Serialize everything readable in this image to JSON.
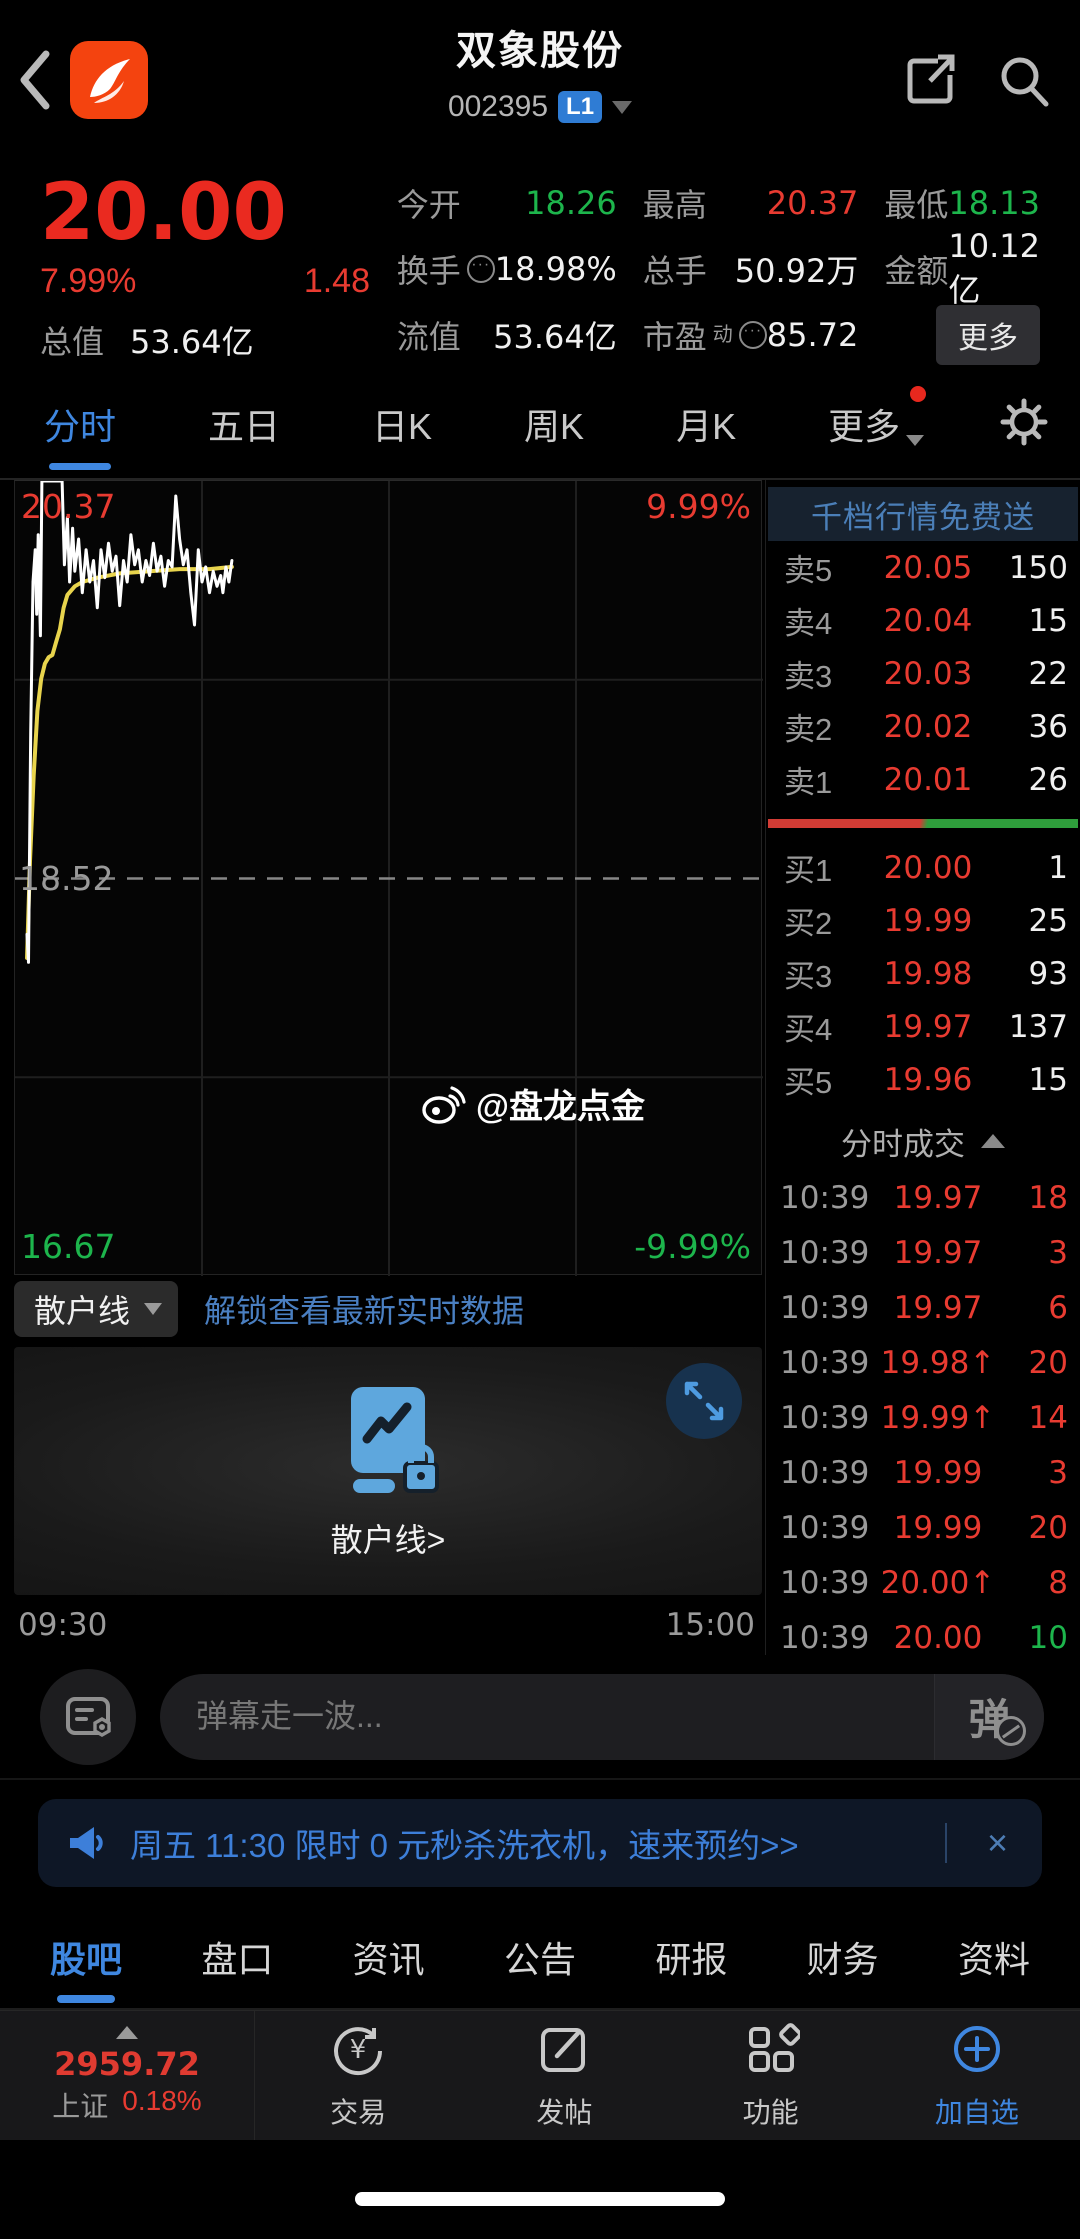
{
  "colors": {
    "accent_blue": "#3f87e0",
    "up_red": "#e83b31",
    "down_green": "#1db54c",
    "price_red": "#ea2a20",
    "link_blue": "#4a7fc1",
    "promo_blue": "#4b7fb8",
    "badge_blue": "#2f7cd4"
  },
  "header": {
    "title": "双象股份",
    "code": "002395",
    "level_badge": "L1"
  },
  "quote": {
    "price": "20.00",
    "change_pct": "7.99%",
    "change_abs": "1.48",
    "cap_label": "总值",
    "cap_value": "53.64亿",
    "stats": [
      {
        "label": "今开",
        "value": "18.26",
        "color": "green"
      },
      {
        "label": "最高",
        "value": "20.37",
        "color": "red"
      },
      {
        "label": "最低",
        "value": "18.13",
        "color": "green"
      },
      {
        "label": "换手",
        "icon": "ellipsis-circle-icon",
        "value": "18.98%",
        "color": "white"
      },
      {
        "label": "总手",
        "value": "50.92万",
        "color": "white"
      },
      {
        "label": "金额",
        "value": "10.12亿",
        "color": "white"
      },
      {
        "label": "流值",
        "value": "53.64亿",
        "color": "white"
      },
      {
        "label": "市盈",
        "sup": "动",
        "icon": "ellipsis-circle-icon",
        "value": "85.72",
        "color": "white"
      },
      {
        "label": "",
        "button": "更多"
      }
    ]
  },
  "period_tabs": [
    {
      "label": "分时",
      "active": true
    },
    {
      "label": "五日"
    },
    {
      "label": "日K"
    },
    {
      "label": "周K"
    },
    {
      "label": "月K"
    },
    {
      "label": "更多",
      "dot": true,
      "caret": true
    }
  ],
  "chart_data": {
    "type": "line",
    "title": "分时图 (intraday minute chart)",
    "x_start": "09:30",
    "x_end": "15:00",
    "ylim": [
      16.67,
      20.37
    ],
    "pct_lim": [
      "-9.99%",
      "9.99%"
    ],
    "prev_close": 18.52,
    "labels": {
      "top_left": "20.37",
      "top_right": "9.99%",
      "mid_left": "18.52",
      "bottom_left": "16.67",
      "bottom_right": "-9.99%"
    },
    "grid": {
      "v_fractions": [
        0.25,
        0.5,
        0.75
      ],
      "h_fractions": [
        0.25,
        0.75
      ]
    },
    "watermark": "@盘龙点金",
    "series": [
      {
        "name": "price",
        "color": "#ffffff",
        "points": [
          [
            0.016,
            18.26
          ],
          [
            0.018,
            18.13
          ],
          [
            0.021,
            19.2
          ],
          [
            0.024,
            19.9
          ],
          [
            0.027,
            20.05
          ],
          [
            0.029,
            19.75
          ],
          [
            0.031,
            20.12
          ],
          [
            0.034,
            19.65
          ],
          [
            0.036,
            20.37
          ],
          [
            0.063,
            20.37
          ],
          [
            0.066,
            19.98
          ],
          [
            0.07,
            20.2
          ],
          [
            0.073,
            19.9
          ],
          [
            0.077,
            20.15
          ],
          [
            0.08,
            19.95
          ],
          [
            0.085,
            20.1
          ],
          [
            0.09,
            19.85
          ],
          [
            0.095,
            20.05
          ],
          [
            0.1,
            19.9
          ],
          [
            0.105,
            20.0
          ],
          [
            0.11,
            19.78
          ],
          [
            0.115,
            20.05
          ],
          [
            0.12,
            19.92
          ],
          [
            0.125,
            20.08
          ],
          [
            0.13,
            19.95
          ],
          [
            0.135,
            20.02
          ],
          [
            0.14,
            19.79
          ],
          [
            0.145,
            20.0
          ],
          [
            0.15,
            19.9
          ],
          [
            0.155,
            20.12
          ],
          [
            0.16,
            19.98
          ],
          [
            0.165,
            20.05
          ],
          [
            0.17,
            19.9
          ],
          [
            0.175,
            20.0
          ],
          [
            0.18,
            19.93
          ],
          [
            0.185,
            20.08
          ],
          [
            0.19,
            19.95
          ],
          [
            0.195,
            20.02
          ],
          [
            0.2,
            19.88
          ],
          [
            0.205,
            20.0
          ],
          [
            0.21,
            19.97
          ],
          [
            0.215,
            20.3
          ],
          [
            0.22,
            20.1
          ],
          [
            0.225,
            19.98
          ],
          [
            0.23,
            20.05
          ],
          [
            0.235,
            19.85
          ],
          [
            0.24,
            19.7
          ],
          [
            0.245,
            20.05
          ],
          [
            0.25,
            19.9
          ],
          [
            0.255,
            19.97
          ],
          [
            0.26,
            19.85
          ],
          [
            0.265,
            19.95
          ],
          [
            0.27,
            19.88
          ],
          [
            0.275,
            19.93
          ],
          [
            0.278,
            19.85
          ],
          [
            0.282,
            19.97
          ],
          [
            0.286,
            19.9
          ],
          [
            0.29,
            20.0
          ]
        ]
      },
      {
        "name": "average",
        "color": "#e8d44d",
        "points": [
          [
            0.016,
            18.15
          ],
          [
            0.02,
            18.6
          ],
          [
            0.025,
            19.0
          ],
          [
            0.03,
            19.3
          ],
          [
            0.035,
            19.45
          ],
          [
            0.04,
            19.52
          ],
          [
            0.045,
            19.55
          ],
          [
            0.05,
            19.56
          ],
          [
            0.055,
            19.62
          ],
          [
            0.06,
            19.68
          ],
          [
            0.065,
            19.78
          ],
          [
            0.07,
            19.84
          ],
          [
            0.08,
            19.88
          ],
          [
            0.09,
            19.9
          ],
          [
            0.11,
            19.92
          ],
          [
            0.14,
            19.94
          ],
          [
            0.18,
            19.95
          ],
          [
            0.22,
            19.96
          ],
          [
            0.26,
            19.96
          ],
          [
            0.29,
            19.97
          ]
        ]
      }
    ]
  },
  "order_panel": {
    "promo": "千档行情免费送",
    "asks": [
      {
        "level": "卖5",
        "price": "20.05",
        "vol": "150"
      },
      {
        "level": "卖4",
        "price": "20.04",
        "vol": "15"
      },
      {
        "level": "卖3",
        "price": "20.03",
        "vol": "22"
      },
      {
        "level": "卖2",
        "price": "20.02",
        "vol": "36"
      },
      {
        "level": "卖1",
        "price": "20.01",
        "vol": "26"
      }
    ],
    "bids": [
      {
        "level": "买1",
        "price": "20.00",
        "vol": "1"
      },
      {
        "level": "买2",
        "price": "19.99",
        "vol": "25"
      },
      {
        "level": "买3",
        "price": "19.98",
        "vol": "93"
      },
      {
        "level": "买4",
        "price": "19.97",
        "vol": "137"
      },
      {
        "level": "买5",
        "price": "19.96",
        "vol": "15"
      }
    ],
    "trades_title": "分时成交",
    "trades": [
      {
        "time": "10:39",
        "price": "19.97",
        "vol": "18",
        "vol_color": "red"
      },
      {
        "time": "10:39",
        "price": "19.97",
        "vol": "3",
        "vol_color": "red"
      },
      {
        "time": "10:39",
        "price": "19.97",
        "vol": "6",
        "vol_color": "red"
      },
      {
        "time": "10:39",
        "price": "19.98↑",
        "vol": "20",
        "vol_color": "red"
      },
      {
        "time": "10:39",
        "price": "19.99↑",
        "vol": "14",
        "vol_color": "red"
      },
      {
        "time": "10:39",
        "price": "19.99",
        "vol": "3",
        "vol_color": "red"
      },
      {
        "time": "10:39",
        "price": "19.99",
        "vol": "20",
        "vol_color": "red"
      },
      {
        "time": "10:39",
        "price": "20.00↑",
        "vol": "8",
        "vol_color": "red"
      },
      {
        "time": "10:39",
        "price": "20.00",
        "vol": "10",
        "vol_color": "green"
      }
    ]
  },
  "retail_line": {
    "button": "散户线",
    "link": "解锁查看最新实时数据",
    "locked_label": "散户线>"
  },
  "comment": {
    "placeholder": "弹幕走一波...",
    "danmu_char": "弹"
  },
  "banner": {
    "text": "周五 11:30 限时 0 元秒杀洗衣机，速来预约>>",
    "close": "×"
  },
  "content_tabs": [
    {
      "label": "股吧",
      "active": true
    },
    {
      "label": "盘口"
    },
    {
      "label": "资讯"
    },
    {
      "label": "公告"
    },
    {
      "label": "研报"
    },
    {
      "label": "财务"
    },
    {
      "label": "资料"
    }
  ],
  "bottom_nav": {
    "index": {
      "value": "2959.72",
      "name": "上证",
      "change": "0.18%"
    },
    "items": [
      {
        "icon": "trade-icon",
        "label": "交易"
      },
      {
        "icon": "post-icon",
        "label": "发帖"
      },
      {
        "icon": "features-icon",
        "label": "功能"
      },
      {
        "icon": "add-watchlist-icon",
        "label": "加自选",
        "accent": true
      }
    ]
  }
}
